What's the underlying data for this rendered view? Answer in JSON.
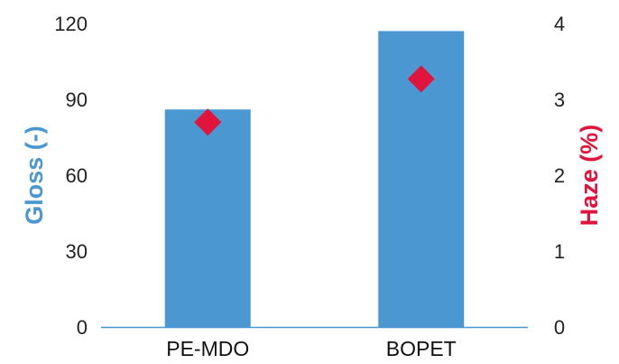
{
  "chart_data": {
    "type": "bar+scatter",
    "categories": [
      "PE-MDO",
      "BOPET"
    ],
    "series": [
      {
        "name": "Gloss (-)",
        "axis": "left",
        "kind": "bar",
        "values": [
          86,
          117
        ]
      },
      {
        "name": "Haze (%)",
        "axis": "right",
        "kind": "scatter",
        "values": [
          2.7,
          3.27
        ]
      }
    ],
    "ylabel": "Gloss (-)",
    "y2label": "Haze (%)",
    "ylim": [
      0,
      120
    ],
    "y2lim": [
      0,
      4
    ],
    "yticks": [
      "0",
      "30",
      "60",
      "90",
      "120"
    ],
    "y2ticks": [
      "0",
      "1",
      "2",
      "3",
      "4"
    ],
    "grid": false,
    "legend": "none",
    "colors": {
      "bar": "#4a97d2",
      "marker": "#e0143c",
      "gloss_title": "#4a97d2",
      "haze_title": "#e0143c",
      "axis": "#4a97d2"
    }
  }
}
